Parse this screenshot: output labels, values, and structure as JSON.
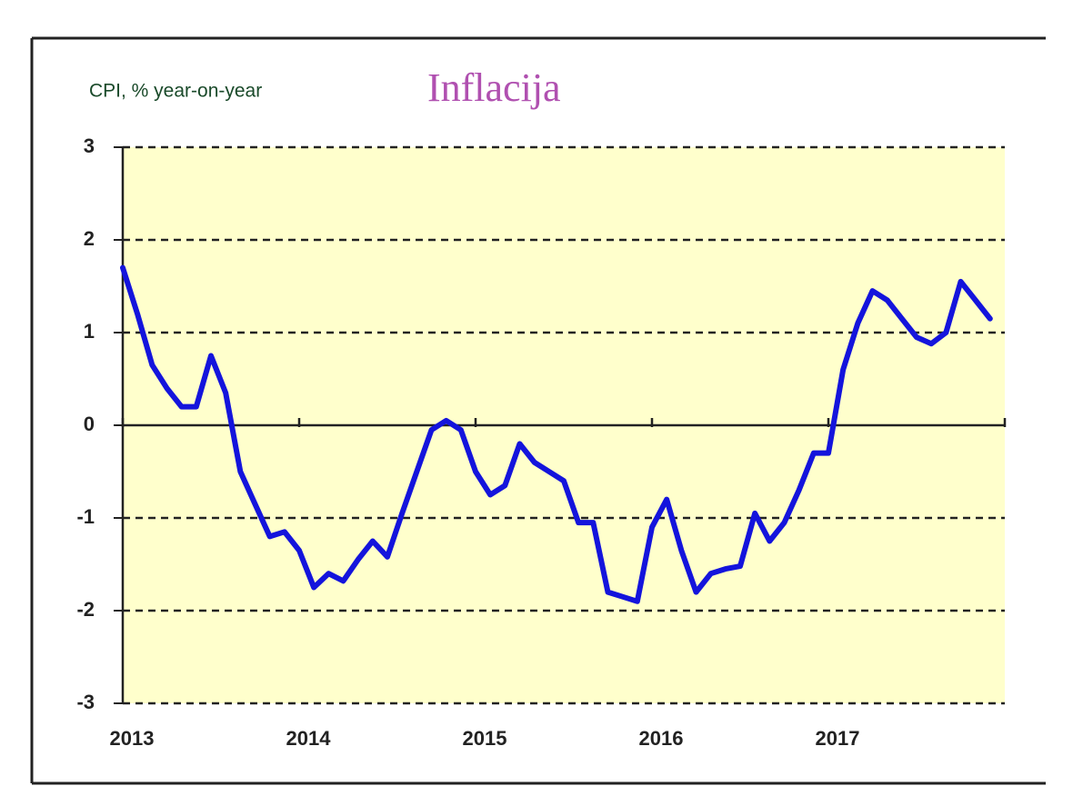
{
  "chart_data": {
    "type": "line",
    "title": "Inflacija",
    "y_label": "CPI, % year-on-year",
    "categories": [
      "2013",
      null,
      null,
      null,
      null,
      null,
      null,
      null,
      null,
      null,
      null,
      null,
      "2014",
      null,
      null,
      null,
      null,
      null,
      null,
      null,
      null,
      null,
      null,
      null,
      "2015",
      null,
      null,
      null,
      null,
      null,
      null,
      null,
      null,
      null,
      null,
      null,
      "2016",
      null,
      null,
      null,
      null,
      null,
      null,
      null,
      null,
      null,
      null,
      null,
      "2017",
      null,
      null,
      null,
      null,
      null,
      null,
      null,
      null,
      null,
      null,
      null
    ],
    "series": [
      {
        "name": "CPI",
        "color": "#1414dc",
        "values": [
          1.7,
          1.2,
          0.65,
          0.4,
          0.2,
          0.2,
          0.75,
          0.35,
          -0.5,
          -0.85,
          -1.2,
          -1.15,
          -1.35,
          -1.75,
          -1.6,
          -1.68,
          -1.45,
          -1.25,
          -1.42,
          -0.95,
          -0.5,
          -0.05,
          0.05,
          -0.05,
          -0.5,
          -0.75,
          -0.65,
          -0.2,
          -0.4,
          -0.5,
          -0.6,
          -1.05,
          -1.05,
          -1.8,
          -1.85,
          -1.9,
          -1.1,
          -0.8,
          -1.35,
          -1.8,
          -1.6,
          -1.55,
          -1.52,
          -0.95,
          -1.25,
          -1.05,
          -0.7,
          -0.3,
          -0.3,
          0.6,
          1.1,
          1.45,
          1.35,
          1.15,
          0.95,
          0.88,
          1.0,
          1.55,
          1.35,
          1.15
        ]
      }
    ],
    "ylim": [
      -3,
      3
    ],
    "yticks": [
      -3,
      -2,
      -1,
      0,
      1,
      2,
      3
    ],
    "grid": true,
    "background": "#ffffcc"
  }
}
